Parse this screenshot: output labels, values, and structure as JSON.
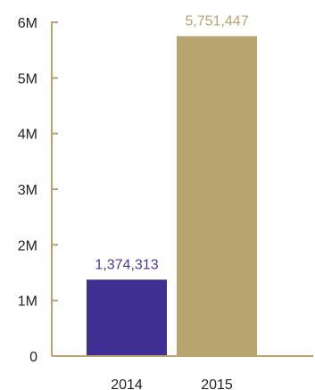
{
  "chart_data": {
    "type": "bar",
    "categories": [
      "2014",
      "2015"
    ],
    "values": [
      1374313,
      5751447
    ],
    "data_labels": [
      "1,374,313",
      "5,751,447"
    ],
    "bar_colors": [
      "#3f2f93",
      "#b8a46e"
    ],
    "label_colors": [
      "#4a3a9e",
      "#b8a46e"
    ],
    "axis_color": "#b8a46e",
    "y_ticks": [
      {
        "value": 0,
        "label": "0"
      },
      {
        "value": 1000000,
        "label": "1M"
      },
      {
        "value": 2000000,
        "label": "2M"
      },
      {
        "value": 3000000,
        "label": "3M"
      },
      {
        "value": 4000000,
        "label": "4M"
      },
      {
        "value": 5000000,
        "label": "5M"
      },
      {
        "value": 6000000,
        "label": "6M"
      }
    ],
    "ylim": [
      0,
      6000000
    ],
    "grid": false,
    "title": "",
    "xlabel": "",
    "ylabel": ""
  }
}
